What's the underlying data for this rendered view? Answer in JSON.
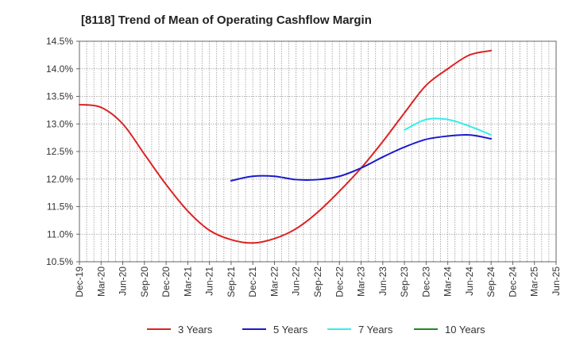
{
  "chart_data": {
    "type": "line",
    "title": "[8118]  Trend of Mean of Operating Cashflow Margin",
    "xlabel": "",
    "ylabel": "",
    "ylim": [
      10.5,
      14.5
    ],
    "yticks": [
      10.5,
      11.0,
      11.5,
      12.0,
      12.5,
      13.0,
      13.5,
      14.0,
      14.5
    ],
    "ytick_labels": [
      "10.5%",
      "11.0%",
      "11.5%",
      "12.0%",
      "12.5%",
      "13.0%",
      "13.5%",
      "14.0%",
      "14.5%"
    ],
    "x_tick_labels": [
      "Dec-19",
      "Mar-20",
      "Jun-20",
      "Sep-20",
      "Dec-20",
      "Mar-21",
      "Jun-21",
      "Sep-21",
      "Dec-21",
      "Mar-22",
      "Jun-22",
      "Sep-22",
      "Dec-22",
      "Mar-23",
      "Jun-23",
      "Sep-23",
      "Dec-23",
      "Mar-24",
      "Jun-24",
      "Sep-24",
      "Dec-24",
      "Mar-25",
      "Jun-25"
    ],
    "grid": true,
    "legend_position": "bottom",
    "series": [
      {
        "name": "3 Years",
        "color": "#dd2222",
        "start_index": 0,
        "values": [
          13.35,
          13.3,
          13.0,
          12.45,
          11.9,
          11.42,
          11.07,
          10.9,
          10.84,
          10.92,
          11.1,
          11.4,
          11.78,
          12.2,
          12.68,
          13.2,
          13.7,
          14.0,
          14.25,
          14.33
        ]
      },
      {
        "name": "5 Years",
        "color": "#1a1acc",
        "start_index": 7,
        "values": [
          11.97,
          12.05,
          12.05,
          11.99,
          11.99,
          12.05,
          12.2,
          12.4,
          12.58,
          12.72,
          12.78,
          12.8,
          12.73
        ]
      },
      {
        "name": "7 Years",
        "color": "#33eeee",
        "start_index": 15,
        "values": [
          12.89,
          13.08,
          13.08,
          12.96,
          12.8
        ]
      },
      {
        "name": "10 Years",
        "color": "#228822",
        "start_index": 0,
        "values": []
      }
    ]
  }
}
